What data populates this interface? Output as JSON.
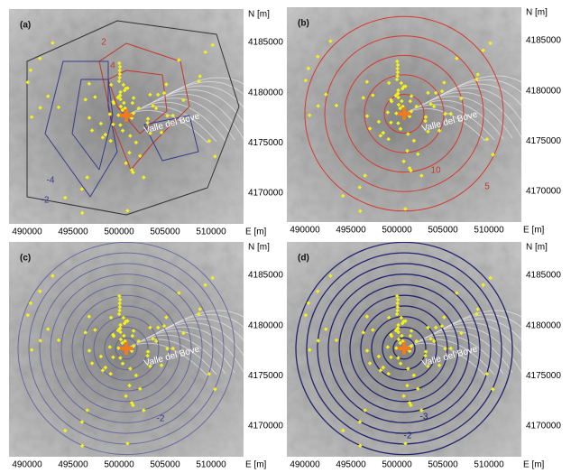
{
  "panels": [
    {
      "label": "(a)",
      "x_axis_label": "E [m]",
      "y_axis_label": "N [m]",
      "xticks": [
        490000,
        495000,
        500000,
        505000,
        510000
      ],
      "yticks": [
        4185000,
        4180000,
        4175000,
        4170000
      ],
      "contour_labels": [
        "2",
        "4",
        "-4",
        "-2"
      ],
      "place_labels": [
        "Valle del Bove"
      ]
    },
    {
      "label": "(b)",
      "x_axis_label": "E [m]",
      "y_axis_label": "N [m]",
      "xticks": [
        490000,
        495000,
        500000,
        505000,
        510000
      ],
      "yticks": [
        4185000,
        4180000,
        4175000,
        4170000
      ],
      "contour_labels": [
        "10",
        "5"
      ],
      "place_labels": [
        "Valle del Bove"
      ]
    },
    {
      "label": "(c)",
      "x_axis_label": "E [m]",
      "y_axis_label": "N [m]",
      "xticks": [
        490000,
        495000,
        500000,
        505000,
        510000
      ],
      "yticks": [
        4185000,
        4180000,
        4175000,
        4170000
      ],
      "contour_labels": [
        "-2"
      ],
      "place_labels": [
        "Valle del Bove"
      ]
    },
    {
      "label": "(d)",
      "x_axis_label": "E [m]",
      "y_axis_label": "N [m]",
      "xticks": [
        490000,
        495000,
        500000,
        505000,
        510000
      ],
      "yticks": [
        4185000,
        4180000,
        4175000,
        4170000
      ],
      "contour_labels": [
        "-3",
        "-2"
      ],
      "place_labels": [
        "Valle del Bove"
      ]
    }
  ]
}
